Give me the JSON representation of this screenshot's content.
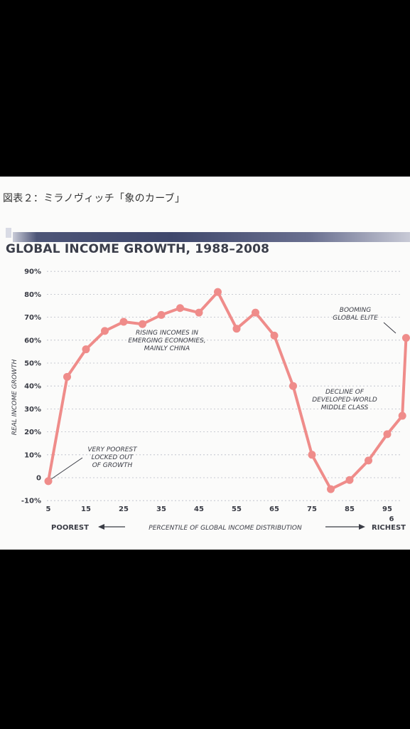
{
  "page": {
    "caption": "図表２：ミラノヴィッチ「象のカーブ」"
  },
  "chart_data": {
    "type": "line",
    "title": "GLOBAL INCOME GROWTH, 1988–2008",
    "ylabel": "REAL INCOME GROWTH",
    "xlabel": "PERCENTILE OF GLOBAL INCOME DISTRIBUTION",
    "x_left_label": "POOREST",
    "x_right_label": "RICHEST",
    "x_ticks": [
      "5",
      "15",
      "25",
      "35",
      "45",
      "55",
      "65",
      "75",
      "85",
      "95"
    ],
    "x_extra_tick": "6",
    "y_ticks": [
      "90%",
      "80%",
      "70%",
      "60%",
      "50%",
      "40%",
      "30%",
      "20%",
      "10%",
      "0",
      "-10%"
    ],
    "ylim": [
      -10,
      90
    ],
    "xlim": [
      5,
      100
    ],
    "grid": true,
    "line_color": "#ef8c8a",
    "x": [
      5,
      10,
      15,
      20,
      25,
      30,
      35,
      40,
      45,
      50,
      55,
      60,
      65,
      70,
      75,
      80,
      85,
      90,
      95,
      99,
      99.99
    ],
    "values": [
      -1.5,
      44,
      56,
      64,
      68,
      67,
      71,
      74,
      72,
      81,
      65,
      72,
      62,
      40,
      10,
      -5,
      -1,
      7.5,
      19,
      27,
      61
    ],
    "annotations": [
      {
        "lines": [
          "RISING INCOMES IN",
          "EMERGING ECONOMIES,",
          "MAINLY CHINA"
        ]
      },
      {
        "lines": [
          "BOOMING",
          "GLOBAL ELITE"
        ]
      },
      {
        "lines": [
          "DECLINE OF",
          "DEVELOPED-WORLD",
          "MIDDLE CLASS"
        ]
      },
      {
        "lines": [
          "VERY POOREST",
          "LOCKED OUT",
          "OF GROWTH"
        ]
      }
    ]
  }
}
